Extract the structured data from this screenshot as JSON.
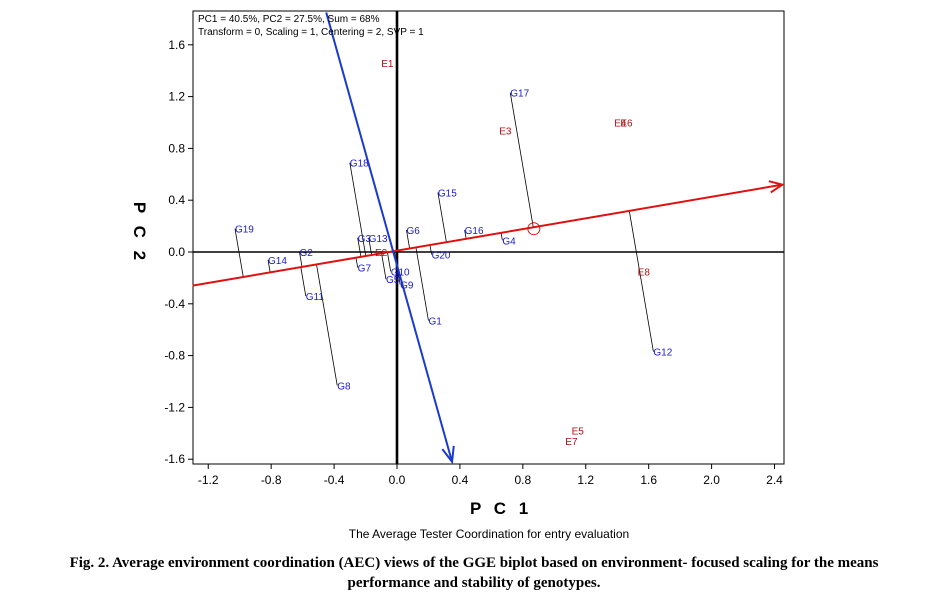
{
  "chart_data": {
    "type": "scatter",
    "title": "",
    "info_lines": [
      "PC1 = 40.5%, PC2 = 27.5%, Sum = 68%",
      "Transform = 0, Scaling = 1, Centering = 2, SVP = 1"
    ],
    "xlabel": "P C 1",
    "ylabel": "P C 2",
    "subtitle": "The Average Tester Coordination for entry evaluation",
    "xlim": [
      -1.3,
      2.45
    ],
    "ylim": [
      -1.65,
      1.85
    ],
    "xticks": [
      -1.2,
      -0.8,
      -0.4,
      0.0,
      0.4,
      0.8,
      1.2,
      1.6,
      2.0,
      2.4
    ],
    "yticks": [
      1.6,
      1.2,
      0.8,
      0.4,
      0.0,
      -0.4,
      -0.8,
      -1.2,
      -1.6
    ],
    "xtick_labels": [
      "-1.2",
      "-0.8",
      "-0.4",
      "0.0",
      "0.4",
      "0.8",
      "1.2",
      "1.6",
      "2.0",
      "2.4"
    ],
    "ytick_labels": [
      "1.6",
      "1.2",
      "0.8",
      "0.4",
      "0.0",
      "-0.4",
      "-0.8",
      "-1.2",
      "-1.6"
    ],
    "aec_abscissa": {
      "from": [
        -1.3,
        -0.26
      ],
      "to": [
        2.45,
        0.52
      ]
    },
    "aec_ordinate": {
      "from": [
        -0.45,
        1.85
      ],
      "to": [
        0.35,
        -1.62
      ]
    },
    "aec_mean_point": [
      0.87,
      0.18
    ],
    "genotypes": [
      {
        "label": "G17",
        "x": 0.72,
        "y": 1.23
      },
      {
        "label": "G18",
        "x": -0.3,
        "y": 0.69
      },
      {
        "label": "G15",
        "x": 0.26,
        "y": 0.46
      },
      {
        "label": "G19",
        "x": -1.03,
        "y": 0.18
      },
      {
        "label": "G6",
        "x": 0.06,
        "y": 0.17
      },
      {
        "label": "G16",
        "x": 0.43,
        "y": 0.17
      },
      {
        "label": "G4",
        "x": 0.67,
        "y": 0.09
      },
      {
        "label": "G3",
        "x": -0.25,
        "y": 0.11
      },
      {
        "label": "G13",
        "x": -0.18,
        "y": 0.11
      },
      {
        "label": "G2",
        "x": -0.62,
        "y": 0.0
      },
      {
        "label": "G14",
        "x": -0.82,
        "y": -0.06
      },
      {
        "label": "G20",
        "x": 0.22,
        "y": -0.02
      },
      {
        "label": "G7",
        "x": -0.25,
        "y": -0.12
      },
      {
        "label": "G10",
        "x": -0.04,
        "y": -0.15
      },
      {
        "label": "G5",
        "x": -0.07,
        "y": -0.21
      },
      {
        "label": "G9",
        "x": 0.02,
        "y": -0.25
      },
      {
        "label": "G11",
        "x": -0.58,
        "y": -0.34
      },
      {
        "label": "G1",
        "x": 0.2,
        "y": -0.53
      },
      {
        "label": "G12",
        "x": 1.63,
        "y": -0.77
      },
      {
        "label": "G8",
        "x": -0.38,
        "y": -1.03
      }
    ],
    "environments": [
      {
        "label": "E1",
        "x": -0.1,
        "y": 1.46
      },
      {
        "label": "E3",
        "x": 0.65,
        "y": 0.94
      },
      {
        "label": "E4",
        "x": 1.38,
        "y": 1.0
      },
      {
        "label": "E6",
        "x": 1.42,
        "y": 1.0
      },
      {
        "label": "E2",
        "x": -0.14,
        "y": 0.0
      },
      {
        "label": "E8",
        "x": 1.53,
        "y": -0.15
      },
      {
        "label": "E5",
        "x": 1.11,
        "y": -1.38
      },
      {
        "label": "E7",
        "x": 1.07,
        "y": -1.46
      }
    ],
    "colors": {
      "genotype": "#1a1acc",
      "environment": "#b01010",
      "abscissa": "#e01010",
      "ordinate": "#1a3ad0",
      "projection": "#000000",
      "axes": "#000000"
    }
  },
  "caption": {
    "line1": "Fig. 2. Average environment coordination (AEC) views of the GGE biplot based on environment- focused scaling for the means",
    "line2": "performance and stability of genotypes."
  }
}
